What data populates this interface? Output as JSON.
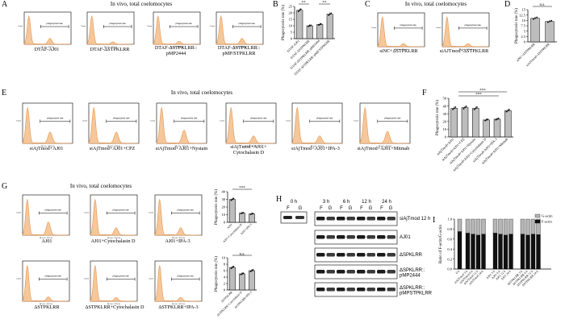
{
  "panels": {
    "A": {
      "label": "A",
      "title": "In vivo, total coelomocytes",
      "captions": [
        "DTAF-AJ01",
        "DTAF-ΔSTPKLRR",
        "DTAF-ΔSTPKLRR::\npMP2444",
        "DTAF-ΔSTPKLRR::\npMP/STPKLRR"
      ]
    },
    "B": {
      "label": "B",
      "ylabel": "Phagocytosis rate (%)",
      "sig": [
        "**",
        "**"
      ],
      "xticks": [
        "DTAF-AJ01",
        "DTAF-ΔSTPKLRR",
        "DTAF-ΔSTPKLRR::pMP2444",
        "DTAF-ΔSTPKLRR::pMP/STPKLRR"
      ]
    },
    "C": {
      "label": "C",
      "title": "In vivo, total coelomocytes",
      "captions": [
        "siNC+ΔSTPKLRR",
        "siAJTmod+ΔSTPKLRR"
      ]
    },
    "D": {
      "label": "D",
      "ylabel": "Phagocytosis rate (%)",
      "sig": [
        "n.s."
      ],
      "xticks": [
        "siNC+ΔSTPKLRR",
        "siAJTmod+ΔSTPKLRR"
      ]
    },
    "E": {
      "label": "E",
      "title": "In vivo, total coelomocytes",
      "captions": [
        "siAjTmod+AJ01",
        "siAjTmod+AJ01+CPZ",
        "siAjTmod+AJ01+Nystain",
        "siAjTmod+AJ01+\nCytochalasin D",
        "siAjTmod+AJ01+IPA-3",
        "siAjTmod+AJ01+Mitmab"
      ]
    },
    "F": {
      "label": "F",
      "ylabel": "Phagocytosis rate (%)",
      "sig": [
        "***",
        "***"
      ],
      "xticks": [
        "siAjTmod+AJ01",
        "siAjTmod+AJ01+CPZ",
        "siAjTmod+AJ01+Nystain",
        "siAjTmod+AJ01+Cytochalasin D",
        "siAjTmod+AJ01+IPA-3",
        "siAjTmod+AJ01+Mitmab"
      ]
    },
    "G": {
      "label": "G",
      "title": "In vivo, total coelomocytes",
      "captions": [
        "AJ01",
        "AJ01+Cytochalasin D",
        "AJ01+IPA-3",
        "ΔSTPKLRR",
        "ΔSTPKLRR+Cytochalasin D",
        "ΔSTPKLRR+IPA-3"
      ],
      "bars_ylabel": "Phagocytosis rate (%)",
      "sig": [
        "***",
        "n.s."
      ]
    },
    "H": {
      "label": "H",
      "times": [
        "0 h",
        "3 h",
        "6 h",
        "12 h",
        "24 h"
      ],
      "fg": [
        "F",
        "G"
      ],
      "rows": [
        "siAjTmod 12 h",
        "AJ01",
        "ΔSPKLRR",
        "ΔSPKLRR::\npMP2444",
        "ΔSPKLRR::\npMPSTPKLRR"
      ]
    },
    "I": {
      "label": "I",
      "ylabel": "Ratio of F-actin/G-actin",
      "legend": [
        "G-actin",
        "F-actin"
      ],
      "yticks": [
        "0.0",
        "0.2",
        "0.4",
        "0.6",
        "0.8",
        "1.0"
      ],
      "xticks": [
        "0 h",
        "siAJTmod 3 h",
        "siAJTmod 6 h",
        "siAJTmod 12 h",
        "siAJTmod 24 h",
        "AJ01 3 h",
        "AJ01 6 h",
        "AJ01 12 h",
        "AJ01 24 h",
        "ΔSTPKLRR 3 h",
        "ΔSTPKLRR 6 h",
        "ΔSTPKLRR 12 h",
        "ΔSTPKLRR 24 h"
      ]
    }
  },
  "flow_labels": {
    "gate": "phagocytosis rate",
    "xaxis": "BL1-H :: FITC-H",
    "yaxis": "Count"
  },
  "chart_data": [
    {
      "type": "bar",
      "panel": "B",
      "categories": [
        "DTAF-AJ01",
        "DTAF-ΔSTPKLRR",
        "DTAF-ΔSTPKLRR::pMP2444",
        "DTAF-ΔSTPKLRR::pMP/STPKLRR"
      ],
      "values": [
        22,
        10,
        11,
        19
      ],
      "ylim": [
        0,
        25
      ],
      "yticks": [
        0,
        5,
        10,
        15,
        20,
        25
      ]
    },
    {
      "type": "bar",
      "panel": "D",
      "categories": [
        "siNC+ΔSTPKLRR",
        "siAJTmod+ΔSTPKLRR"
      ],
      "values": [
        11,
        9.5
      ],
      "ylim": [
        0,
        15
      ],
      "yticks": [
        0,
        2.5,
        5.0,
        7.5,
        10.0,
        12.5,
        15.0
      ]
    },
    {
      "type": "bar",
      "panel": "F",
      "categories": [
        "siAjTmod+AJ01",
        "siAjTmod+AJ01+CPZ",
        "siAjTmod+AJ01+Nystain",
        "siAjTmod+AJ01+Cytochalasin D",
        "siAjTmod+AJ01+IPA-3",
        "siAjTmod+AJ01+Mitmab"
      ],
      "values": [
        37,
        38,
        37,
        22,
        23,
        34
      ],
      "ylim": [
        0,
        50
      ],
      "yticks": [
        0,
        10,
        20,
        30,
        40,
        50
      ]
    },
    {
      "type": "bar",
      "panel": "G-top",
      "categories": [
        "AJ01",
        "AJ01+Cytochalasin D",
        "AJ01+IPA-3"
      ],
      "values": [
        30,
        12,
        11
      ],
      "ylim": [
        0,
        40
      ],
      "yticks": [
        0,
        10,
        20,
        30,
        40
      ]
    },
    {
      "type": "bar",
      "panel": "G-bottom",
      "categories": [
        "ΔSTPKLRR",
        "ΔSTPKLRR+Cytochalasin D",
        "ΔSTPKLRR+IPA-3"
      ],
      "values": [
        7,
        5,
        6
      ],
      "ylim": [
        0,
        10
      ],
      "yticks": [
        0,
        2,
        4,
        6,
        8,
        10
      ]
    },
    {
      "type": "bar",
      "panel": "I",
      "stacked": true,
      "categories": [
        "0 h",
        "siAJTmod 3 h",
        "siAJTmod 6 h",
        "siAJTmod 12 h",
        "siAJTmod 24 h",
        "AJ01 3 h",
        "AJ01 6 h",
        "AJ01 12 h",
        "AJ01 24 h",
        "ΔSTPKLRR 3 h",
        "ΔSTPKLRR 6 h",
        "ΔSTPKLRR 12 h",
        "ΔSTPKLRR 24 h"
      ],
      "series": [
        {
          "name": "F-actin",
          "values": [
            0.75,
            0.72,
            0.7,
            0.68,
            0.7,
            0.72,
            0.7,
            0.68,
            0.7,
            0.7,
            0.68,
            0.7,
            0.69
          ]
        },
        {
          "name": "G-actin",
          "values": [
            0.25,
            0.28,
            0.3,
            0.32,
            0.3,
            0.28,
            0.3,
            0.32,
            0.3,
            0.3,
            0.32,
            0.3,
            0.31
          ]
        }
      ],
      "ylim": [
        0,
        1.0
      ]
    }
  ],
  "colors": {
    "hist_fill": "#f5c79a",
    "hist_line": "#e8954d",
    "bar_fill": "#bdbdbd",
    "f_actin": "#111111",
    "g_actin": "#b5b5b5"
  }
}
